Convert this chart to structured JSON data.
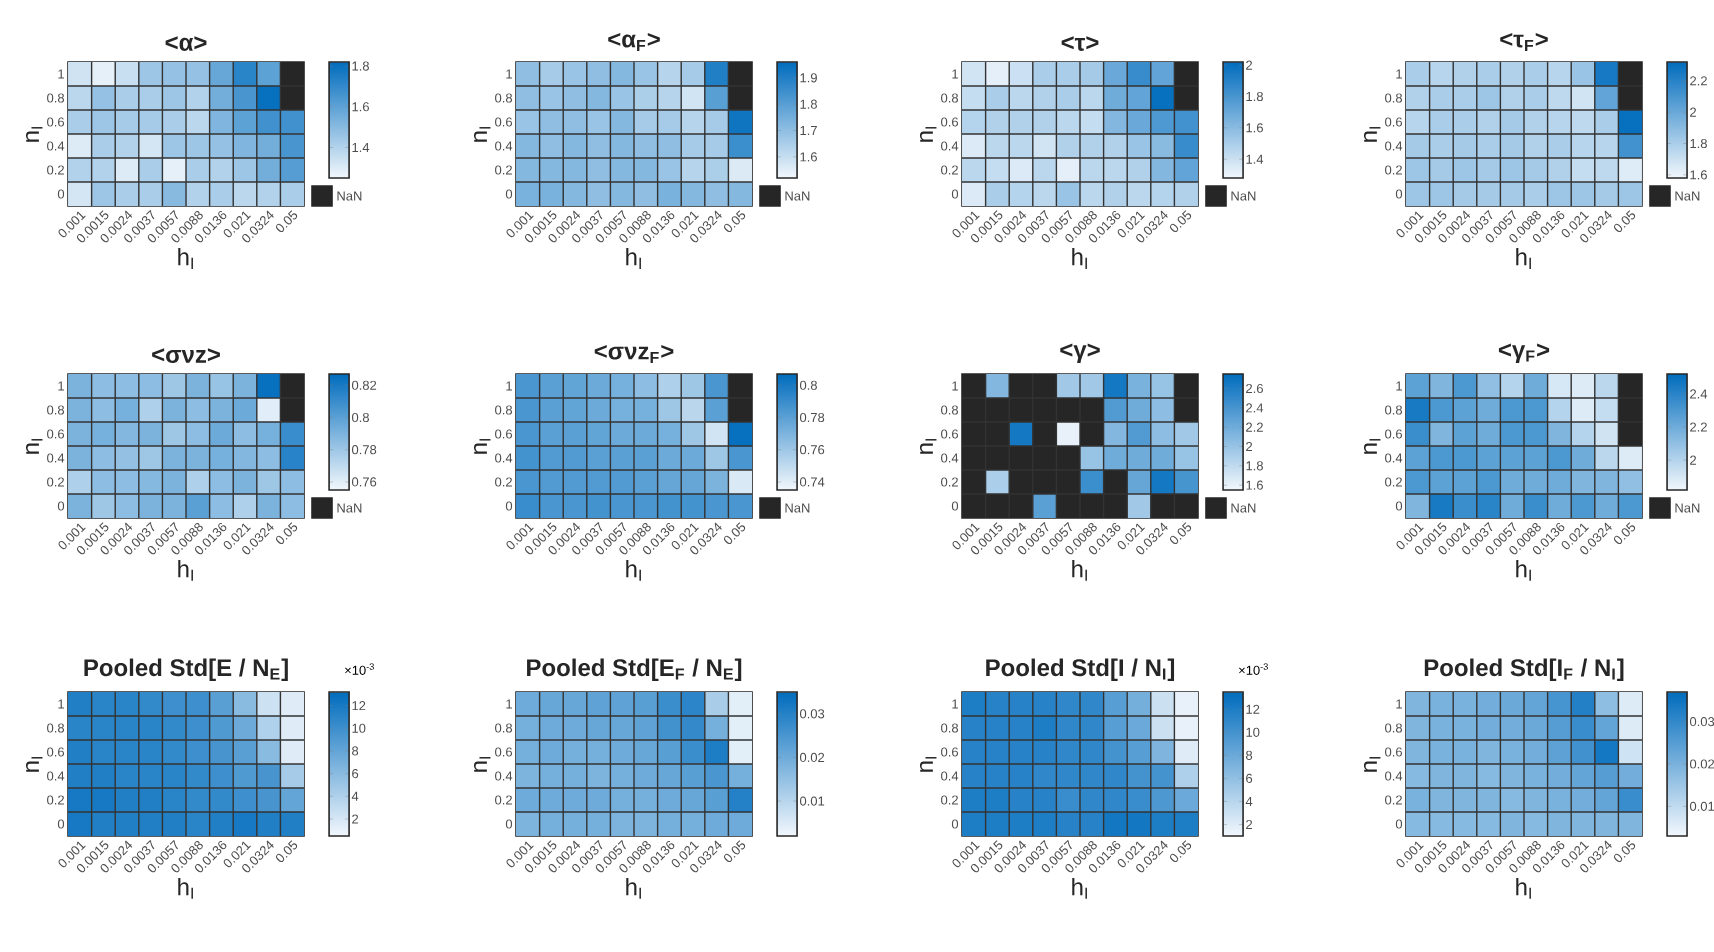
{
  "chart_data": [
    {
      "type": "heatmap",
      "title": "<α>",
      "xlabel": "h$_{I}$",
      "ylabel": "n$_{I}$",
      "categories": [
        "0.001",
        "0.0015",
        "0.0024",
        "0.0037",
        "0.0057",
        "0.0088",
        "0.0136",
        "0.021",
        "0.0324",
        "0.05"
      ],
      "y_categories": [
        "1",
        "0.8",
        "0.6",
        "0.4",
        "0.2",
        "0"
      ],
      "clim": [
        1.25,
        1.82
      ],
      "cticks": [
        1.4,
        1.6,
        1.8
      ],
      "annotations": [
        "NaN"
      ],
      "cells": [
        [
          1.33,
          1.28,
          1.35,
          1.45,
          1.47,
          1.47,
          1.58,
          1.72,
          1.6,
          null
        ],
        [
          1.38,
          1.47,
          1.42,
          1.42,
          1.45,
          1.4,
          1.55,
          1.65,
          1.8,
          null
        ],
        [
          1.42,
          1.45,
          1.43,
          1.43,
          1.42,
          1.38,
          1.52,
          1.6,
          1.67,
          1.67
        ],
        [
          1.3,
          1.42,
          1.4,
          1.32,
          1.45,
          1.45,
          1.47,
          1.52,
          1.55,
          1.65
        ],
        [
          1.4,
          1.4,
          1.3,
          1.42,
          1.28,
          1.42,
          1.4,
          1.45,
          1.55,
          1.62
        ],
        [
          1.32,
          1.45,
          1.42,
          1.42,
          1.5,
          1.4,
          1.42,
          1.38,
          1.4,
          1.42
        ]
      ]
    },
    {
      "type": "heatmap",
      "title": "<α$_{F}$>",
      "xlabel": "h$_{I}$",
      "ylabel": "n$_{I}$",
      "categories": [
        "0.001",
        "0.0015",
        "0.0024",
        "0.0037",
        "0.0057",
        "0.0088",
        "0.0136",
        "0.021",
        "0.0324",
        "0.05"
      ],
      "y_categories": [
        "1",
        "0.8",
        "0.6",
        "0.4",
        "0.2",
        "0"
      ],
      "clim": [
        1.52,
        1.96
      ],
      "cticks": [
        1.6,
        1.7,
        1.8,
        1.9
      ],
      "annotations": [
        "NaN"
      ],
      "cells": [
        [
          1.7,
          1.66,
          1.68,
          1.7,
          1.72,
          1.68,
          1.63,
          1.66,
          1.9,
          null
        ],
        [
          1.7,
          1.68,
          1.7,
          1.72,
          1.68,
          1.65,
          1.63,
          1.58,
          1.8,
          null
        ],
        [
          1.68,
          1.7,
          1.7,
          1.68,
          1.72,
          1.66,
          1.66,
          1.63,
          1.66,
          1.93
        ],
        [
          1.72,
          1.7,
          1.72,
          1.7,
          1.72,
          1.7,
          1.7,
          1.66,
          1.66,
          1.85
        ],
        [
          1.72,
          1.72,
          1.72,
          1.7,
          1.72,
          1.72,
          1.68,
          1.63,
          1.65,
          1.56
        ],
        [
          1.74,
          1.74,
          1.72,
          1.7,
          1.72,
          1.7,
          1.74,
          1.72,
          1.7,
          1.72
        ]
      ]
    },
    {
      "type": "heatmap",
      "title": "<τ>",
      "xlabel": "h$_{I}$",
      "ylabel": "n$_{I}$",
      "categories": [
        "0.001",
        "0.0015",
        "0.0024",
        "0.0037",
        "0.0057",
        "0.0088",
        "0.0136",
        "0.021",
        "0.0324",
        "0.05"
      ],
      "y_categories": [
        "1",
        "0.8",
        "0.6",
        "0.4",
        "0.2",
        "0"
      ],
      "clim": [
        1.28,
        2.02
      ],
      "cticks": [
        1.4,
        1.6,
        1.8,
        2
      ],
      "annotations": [
        "NaN"
      ],
      "cells": [
        [
          1.38,
          1.32,
          1.4,
          1.5,
          1.5,
          1.52,
          1.7,
          1.85,
          1.72,
          null
        ],
        [
          1.42,
          1.5,
          1.45,
          1.48,
          1.5,
          1.45,
          1.68,
          1.72,
          2.0,
          null
        ],
        [
          1.47,
          1.48,
          1.48,
          1.48,
          1.45,
          1.42,
          1.62,
          1.7,
          1.78,
          1.82
        ],
        [
          1.35,
          1.45,
          1.45,
          1.38,
          1.48,
          1.48,
          1.48,
          1.55,
          1.6,
          1.85
        ],
        [
          1.45,
          1.42,
          1.35,
          1.45,
          1.32,
          1.45,
          1.45,
          1.48,
          1.62,
          1.72
        ],
        [
          1.35,
          1.5,
          1.47,
          1.45,
          1.55,
          1.45,
          1.48,
          1.45,
          1.47,
          1.48
        ]
      ]
    },
    {
      "type": "heatmap",
      "title": "<τ$_{F}$>",
      "xlabel": "h$_{I}$",
      "ylabel": "n$_{I}$",
      "categories": [
        "0.001",
        "0.0015",
        "0.0024",
        "0.0037",
        "0.0057",
        "0.0088",
        "0.0136",
        "0.021",
        "0.0324",
        "0.05"
      ],
      "y_categories": [
        "1",
        "0.8",
        "0.6",
        "0.4",
        "0.2",
        "0"
      ],
      "clim": [
        1.58,
        2.32
      ],
      "cticks": [
        1.6,
        1.8,
        2,
        2.2
      ],
      "annotations": [
        "NaN"
      ],
      "cells": [
        [
          1.8,
          1.76,
          1.78,
          1.8,
          1.78,
          1.8,
          1.76,
          1.85,
          2.25,
          null
        ],
        [
          1.78,
          1.8,
          1.8,
          1.84,
          1.78,
          1.8,
          1.74,
          1.68,
          2.02,
          null
        ],
        [
          1.76,
          1.8,
          1.8,
          1.78,
          1.82,
          1.78,
          1.76,
          1.74,
          1.8,
          2.3
        ],
        [
          1.82,
          1.8,
          1.82,
          1.8,
          1.82,
          1.78,
          1.8,
          1.76,
          1.76,
          2.12
        ],
        [
          1.84,
          1.82,
          1.84,
          1.82,
          1.84,
          1.82,
          1.78,
          1.72,
          1.74,
          1.64
        ],
        [
          1.84,
          1.84,
          1.82,
          1.82,
          1.82,
          1.8,
          1.84,
          1.84,
          1.82,
          1.84
        ]
      ]
    },
    {
      "type": "heatmap",
      "title": "<σνz>",
      "xlabel": "h$_{I}$",
      "ylabel": "n$_{I}$",
      "categories": [
        "0.001",
        "0.0015",
        "0.0024",
        "0.0037",
        "0.0057",
        "0.0088",
        "0.0136",
        "0.021",
        "0.0324",
        "0.05"
      ],
      "y_categories": [
        "1",
        "0.8",
        "0.6",
        "0.4",
        "0.2",
        "0"
      ],
      "clim": [
        0.755,
        0.827
      ],
      "cticks": [
        0.76,
        0.78,
        0.8,
        0.82
      ],
      "annotations": [
        "NaN"
      ],
      "cells": [
        [
          0.79,
          0.785,
          0.785,
          0.785,
          0.78,
          0.79,
          0.782,
          0.79,
          0.825,
          null
        ],
        [
          0.79,
          0.785,
          0.792,
          0.775,
          0.79,
          0.785,
          0.79,
          0.795,
          0.76,
          null
        ],
        [
          0.79,
          0.792,
          0.788,
          0.79,
          0.78,
          0.785,
          0.795,
          0.785,
          0.792,
          0.81
        ],
        [
          0.79,
          0.785,
          0.783,
          0.78,
          0.79,
          0.79,
          0.792,
          0.788,
          0.785,
          0.815
        ],
        [
          0.775,
          0.785,
          0.785,
          0.787,
          0.79,
          0.775,
          0.785,
          0.79,
          0.78,
          0.785
        ],
        [
          0.79,
          0.78,
          0.785,
          0.79,
          0.79,
          0.8,
          0.785,
          0.775,
          0.79,
          0.785
        ]
      ]
    },
    {
      "type": "heatmap",
      "title": "<σνz$_{F}$>",
      "xlabel": "h$_{I}$",
      "ylabel": "n$_{I}$",
      "categories": [
        "0.001",
        "0.0015",
        "0.0024",
        "0.0037",
        "0.0057",
        "0.0088",
        "0.0136",
        "0.021",
        "0.0324",
        "0.05"
      ],
      "y_categories": [
        "1",
        "0.8",
        "0.6",
        "0.4",
        "0.2",
        "0"
      ],
      "clim": [
        0.735,
        0.807
      ],
      "cticks": [
        0.74,
        0.76,
        0.78,
        0.8
      ],
      "annotations": [
        "NaN"
      ],
      "cells": [
        [
          0.785,
          0.78,
          0.778,
          0.775,
          0.772,
          0.765,
          0.755,
          0.76,
          0.785,
          null
        ],
        [
          0.785,
          0.78,
          0.778,
          0.775,
          0.772,
          0.772,
          0.76,
          0.752,
          0.78,
          null
        ],
        [
          0.785,
          0.78,
          0.78,
          0.778,
          0.775,
          0.775,
          0.772,
          0.76,
          0.745,
          0.805
        ],
        [
          0.787,
          0.783,
          0.783,
          0.78,
          0.78,
          0.78,
          0.775,
          0.775,
          0.76,
          0.785
        ],
        [
          0.785,
          0.783,
          0.783,
          0.783,
          0.783,
          0.78,
          0.777,
          0.777,
          0.77,
          0.742
        ],
        [
          0.79,
          0.785,
          0.785,
          0.787,
          0.785,
          0.785,
          0.787,
          0.787,
          0.785,
          0.785
        ]
      ]
    },
    {
      "type": "heatmap",
      "title": "<γ>",
      "xlabel": "h$_{I}$",
      "ylabel": "n$_{I}$",
      "categories": [
        "0.001",
        "0.0015",
        "0.0024",
        "0.0037",
        "0.0057",
        "0.0088",
        "0.0136",
        "0.021",
        "0.0324",
        "0.05"
      ],
      "y_categories": [
        "1",
        "0.8",
        "0.6",
        "0.4",
        "0.2",
        "0"
      ],
      "clim": [
        1.55,
        2.75
      ],
      "cticks": [
        1.6,
        1.8,
        2,
        2.2,
        2.4,
        2.6
      ],
      "annotations": [
        "NaN"
      ],
      "cells": [
        [
          null,
          2.1,
          null,
          null,
          1.95,
          1.95,
          2.65,
          2.15,
          2.0,
          null
        ],
        [
          null,
          null,
          null,
          null,
          null,
          null,
          2.35,
          2.2,
          2.05,
          null
        ],
        [
          null,
          null,
          2.65,
          null,
          1.6,
          null,
          2.1,
          2.35,
          2.05,
          1.95
        ],
        [
          null,
          null,
          null,
          null,
          null,
          2.0,
          2.2,
          2.2,
          2.2,
          2.0
        ],
        [
          null,
          1.9,
          null,
          null,
          null,
          2.45,
          null,
          2.25,
          2.65,
          2.4
        ],
        [
          null,
          null,
          null,
          2.3,
          null,
          null,
          null,
          1.95,
          null,
          null
        ]
      ]
    },
    {
      "type": "heatmap",
      "title": "<γ$_{F}$>",
      "xlabel": "h$_{I}$",
      "ylabel": "n$_{I}$",
      "categories": [
        "0.001",
        "0.0015",
        "0.0024",
        "0.0037",
        "0.0057",
        "0.0088",
        "0.0136",
        "0.021",
        "0.0324",
        "0.05"
      ],
      "y_categories": [
        "1",
        "0.8",
        "0.6",
        "0.4",
        "0.2",
        "0"
      ],
      "clim": [
        1.82,
        2.52
      ],
      "cticks": [
        2,
        2.2,
        2.4
      ],
      "annotations": [
        "NaN"
      ],
      "cells": [
        [
          2.25,
          2.15,
          2.3,
          2.1,
          2.0,
          2.2,
          1.9,
          1.88,
          1.98,
          null
        ],
        [
          2.45,
          2.3,
          2.25,
          2.2,
          2.3,
          2.3,
          2.0,
          1.88,
          1.95,
          null
        ],
        [
          2.35,
          2.15,
          2.25,
          2.2,
          2.3,
          2.3,
          2.15,
          2.0,
          1.92,
          null
        ],
        [
          2.25,
          2.3,
          2.3,
          2.25,
          2.25,
          2.25,
          2.3,
          2.2,
          1.98,
          1.88
        ],
        [
          2.3,
          2.25,
          2.25,
          2.3,
          2.2,
          2.2,
          2.2,
          2.15,
          2.15,
          2.1
        ],
        [
          2.15,
          2.45,
          2.35,
          2.4,
          2.2,
          2.35,
          2.2,
          2.3,
          2.2,
          2.3
        ]
      ]
    },
    {
      "type": "heatmap",
      "title": "Pooled Std[E / N$_{E}$]",
      "xlabel": "h$_{I}$",
      "ylabel": "n$_{I}$",
      "categories": [
        "0.001",
        "0.0015",
        "0.0024",
        "0.0037",
        "0.0057",
        "0.0088",
        "0.0136",
        "0.021",
        "0.0324",
        "0.05"
      ],
      "y_categories": [
        "1",
        "0.8",
        "0.6",
        "0.4",
        "0.2",
        "0"
      ],
      "clim": [
        0.5,
        13.2
      ],
      "cticks": [
        2,
        4,
        6,
        8,
        10,
        12
      ],
      "clabel": "×10$^{-3}$",
      "cells": [
        [
          11.5,
          11,
          11,
          10.5,
          10,
          10,
          8.5,
          6,
          2.5,
          1.5
        ],
        [
          11,
          11,
          11,
          11,
          10.5,
          10,
          9,
          7.5,
          4,
          1.5
        ],
        [
          11.5,
          11,
          11,
          11,
          10.5,
          10,
          9.5,
          8.5,
          6,
          1.5
        ],
        [
          11.5,
          11.5,
          11,
          11,
          11,
          10.5,
          10,
          9,
          9.5,
          4.5
        ],
        [
          12,
          12,
          11.5,
          11.5,
          11,
          10.5,
          10.5,
          10,
          9.5,
          8
        ],
        [
          12,
          11.5,
          11.5,
          11.5,
          11.5,
          11,
          11.5,
          12,
          11.5,
          11.5
        ]
      ]
    },
    {
      "type": "heatmap",
      "title": "Pooled Std[E$_{F}$ / N$_{E}$]",
      "xlabel": "h$_{I}$",
      "ylabel": "n$_{I}$",
      "categories": [
        "0.001",
        "0.0015",
        "0.0024",
        "0.0037",
        "0.0057",
        "0.0088",
        "0.0136",
        "0.021",
        "0.0324",
        "0.05"
      ],
      "y_categories": [
        "1",
        "0.8",
        "0.6",
        "0.4",
        "0.2",
        "0"
      ],
      "clim": [
        0.002,
        0.035
      ],
      "cticks": [
        0.01,
        0.02,
        0.03
      ],
      "cells": [
        [
          0.02,
          0.021,
          0.021,
          0.022,
          0.022,
          0.023,
          0.027,
          0.029,
          0.012,
          0.004
        ],
        [
          0.019,
          0.02,
          0.02,
          0.021,
          0.021,
          0.022,
          0.026,
          0.028,
          0.019,
          0.004
        ],
        [
          0.019,
          0.02,
          0.019,
          0.019,
          0.02,
          0.021,
          0.023,
          0.027,
          0.031,
          0.004
        ],
        [
          0.018,
          0.019,
          0.019,
          0.018,
          0.019,
          0.02,
          0.021,
          0.023,
          0.025,
          0.019
        ],
        [
          0.02,
          0.02,
          0.02,
          0.02,
          0.019,
          0.019,
          0.02,
          0.021,
          0.023,
          0.03
        ],
        [
          0.018,
          0.019,
          0.019,
          0.019,
          0.018,
          0.018,
          0.019,
          0.019,
          0.02,
          0.02
        ]
      ]
    },
    {
      "type": "heatmap",
      "title": "Pooled Std[I / N$_{I}$]",
      "xlabel": "h$_{I}$",
      "ylabel": "n$_{I}$",
      "categories": [
        "0.001",
        "0.0015",
        "0.0024",
        "0.0037",
        "0.0057",
        "0.0088",
        "0.0136",
        "0.021",
        "0.0324",
        "0.05"
      ],
      "y_categories": [
        "1",
        "0.8",
        "0.6",
        "0.4",
        "0.2",
        "0"
      ],
      "clim": [
        1,
        13.5
      ],
      "cticks": [
        2,
        4,
        6,
        8,
        10,
        12
      ],
      "clabel": "×10$^{-3}$",
      "cells": [
        [
          12,
          11.5,
          11.5,
          11.5,
          11,
          11,
          9,
          7.5,
          3,
          1.5
        ],
        [
          11.5,
          11.5,
          11.5,
          12,
          11,
          11,
          9,
          8,
          3,
          1.5
        ],
        [
          11.5,
          11.5,
          11.5,
          11.5,
          11,
          11,
          10,
          9,
          7,
          2
        ],
        [
          11.5,
          11.5,
          11.5,
          11,
          11,
          11,
          11,
          10,
          10,
          4.5
        ],
        [
          12,
          12,
          11.5,
          11.5,
          10.5,
          11,
          11,
          10.5,
          9.5,
          8
        ],
        [
          12,
          12,
          12,
          12,
          11.5,
          11.5,
          12.5,
          12.5,
          12,
          12
        ]
      ]
    },
    {
      "type": "heatmap",
      "title": "Pooled Std[I$_{F}$ / N$_{I}$]",
      "xlabel": "h$_{I}$",
      "ylabel": "n$_{I}$",
      "categories": [
        "0.001",
        "0.0015",
        "0.0024",
        "0.0037",
        "0.0057",
        "0.0088",
        "0.0136",
        "0.021",
        "0.0324",
        "0.05"
      ],
      "y_categories": [
        "1",
        "0.8",
        "0.6",
        "0.4",
        "0.2",
        "0"
      ],
      "clim": [
        0.003,
        0.037
      ],
      "cticks": [
        0.01,
        0.02,
        0.03
      ],
      "cells": [
        [
          0.019,
          0.02,
          0.02,
          0.021,
          0.022,
          0.023,
          0.027,
          0.032,
          0.017,
          0.006
        ],
        [
          0.019,
          0.02,
          0.02,
          0.021,
          0.021,
          0.022,
          0.025,
          0.029,
          0.023,
          0.006
        ],
        [
          0.019,
          0.02,
          0.02,
          0.019,
          0.02,
          0.021,
          0.024,
          0.028,
          0.034,
          0.008
        ],
        [
          0.018,
          0.019,
          0.019,
          0.018,
          0.019,
          0.02,
          0.021,
          0.023,
          0.025,
          0.021
        ],
        [
          0.02,
          0.019,
          0.019,
          0.019,
          0.018,
          0.019,
          0.02,
          0.021,
          0.023,
          0.029
        ],
        [
          0.018,
          0.018,
          0.018,
          0.018,
          0.019,
          0.018,
          0.019,
          0.019,
          0.019,
          0.019
        ]
      ]
    }
  ]
}
